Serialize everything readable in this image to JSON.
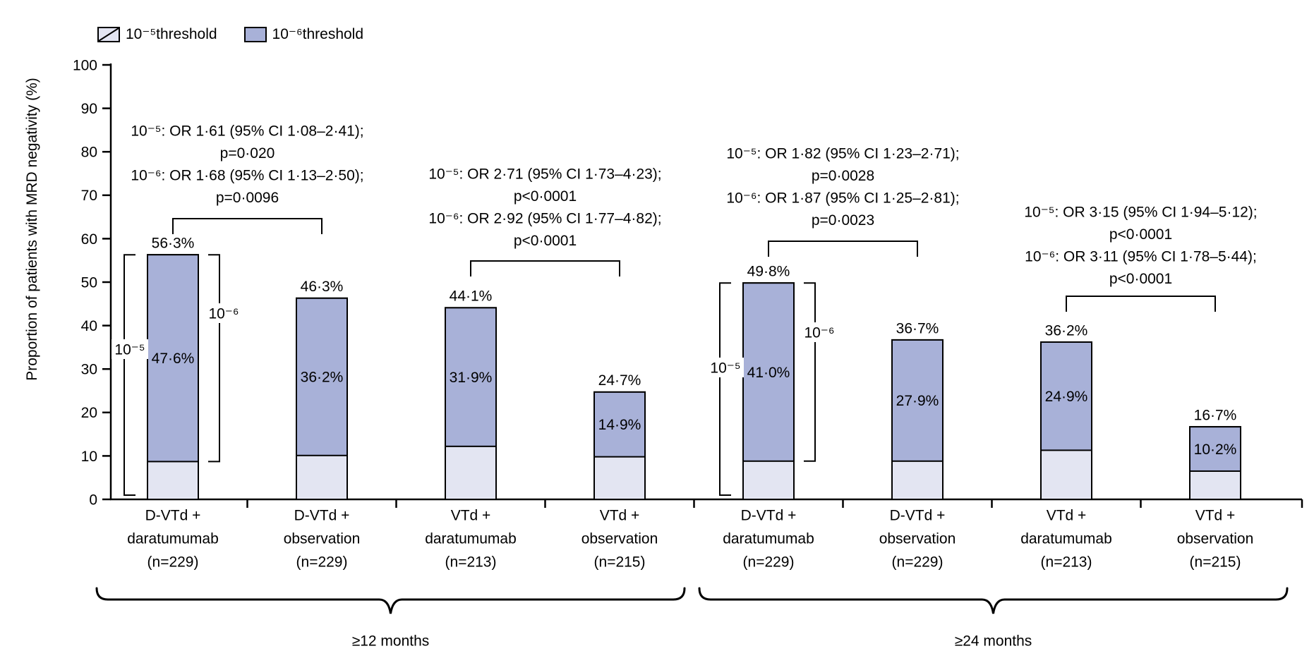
{
  "figure": {
    "background": "#ffffff",
    "y_axis": {
      "title": "Proportion of patients with MRD negativity (%)",
      "min": 0,
      "max": 100,
      "step": 10,
      "tick_labels": [
        "0",
        "10",
        "20",
        "30",
        "40",
        "50",
        "60",
        "70",
        "80",
        "90",
        "100"
      ]
    },
    "legend": {
      "items": [
        {
          "label": "10⁻⁵threshold",
          "swatch": "hatched-1e5"
        },
        {
          "label": "10⁻⁶threshold",
          "swatch": "solid-1e6"
        }
      ]
    },
    "colors": {
      "fill_1e6": "#a8b1d8",
      "fill_1e5": "#e3e5f2",
      "outline": "#000000",
      "text": "#000000"
    }
  },
  "chart_data": {
    "type": "bar",
    "stacked": true,
    "ylabel": "Proportion of patients with MRD negativity (%)",
    "ylim": [
      0,
      100
    ],
    "grid": false,
    "legend_position": "top-left",
    "groups": [
      {
        "label": "≥12 months",
        "bars": [
          {
            "category_lines": [
              "D-VTd +",
              "daratumumab",
              "(n=229)"
            ],
            "pct_1e5": 56.3,
            "pct_1e6": 47.6,
            "label_1e5": "56·3%",
            "label_1e6": "47·6%"
          },
          {
            "category_lines": [
              "D-VTd +",
              "observation",
              "(n=229)"
            ],
            "pct_1e5": 46.3,
            "pct_1e6": 36.2,
            "label_1e5": "46·3%",
            "label_1e6": "36·2%"
          },
          {
            "category_lines": [
              "VTd +",
              "daratumumab",
              "(n=213)"
            ],
            "pct_1e5": 44.1,
            "pct_1e6": 31.9,
            "label_1e5": "44·1%",
            "label_1e6": "31·9%"
          },
          {
            "category_lines": [
              "VTd +",
              "observation",
              "(n=215)"
            ],
            "pct_1e5": 24.7,
            "pct_1e6": 14.9,
            "label_1e5": "24·7%",
            "label_1e6": "14·9%"
          }
        ]
      },
      {
        "label": "≥24 months",
        "bars": [
          {
            "category_lines": [
              "D-VTd +",
              "daratumumab",
              "(n=229)"
            ],
            "pct_1e5": 49.8,
            "pct_1e6": 41.0,
            "label_1e5": "49·8%",
            "label_1e6": "41·0%"
          },
          {
            "category_lines": [
              "D-VTd +",
              "observation",
              "(n=229)"
            ],
            "pct_1e5": 36.7,
            "pct_1e6": 27.9,
            "label_1e5": "36·7%",
            "label_1e6": "27·9%"
          },
          {
            "category_lines": [
              "VTd +",
              "daratumumab",
              "(n=213)"
            ],
            "pct_1e5": 36.2,
            "pct_1e6": 24.9,
            "label_1e5": "36·2%",
            "label_1e6": "24·9%"
          },
          {
            "category_lines": [
              "VTd +",
              "observation",
              "(n=215)"
            ],
            "pct_1e5": 16.7,
            "pct_1e6": 10.2,
            "label_1e5": "16·7%",
            "label_1e6": "10·2%"
          }
        ]
      }
    ],
    "annotations": [
      {
        "bars": [
          0,
          1
        ],
        "lines": [
          "10⁻⁵: OR 1·61 (95% CI 1·08–2·41);",
          "p=0·020",
          "10⁻⁶: OR 1·68 (95% CI 1·13–2·50);",
          "p=0·0096"
        ]
      },
      {
        "bars": [
          2,
          3
        ],
        "lines": [
          "10⁻⁵: OR 2·71 (95% CI 1·73–4·23);",
          "p<0·0001",
          "10⁻⁶: OR 2·92 (95% CI 1·77–4·82);",
          "p<0·0001"
        ]
      },
      {
        "bars": [
          4,
          5
        ],
        "lines": [
          "10⁻⁵: OR 1·82 (95% CI 1·23–2·71);",
          "p=0·0028",
          "10⁻⁶: OR 1·87 (95% CI 1·25–2·81);",
          "p=0·0023"
        ]
      },
      {
        "bars": [
          6,
          7
        ],
        "lines": [
          "10⁻⁵: OR 3·15 (95% CI 1·94–5·12);",
          "p<0·0001",
          "10⁻⁶: OR 3·11 (95% CI 1·78–5·44);",
          "p<0·0001"
        ]
      }
    ],
    "range_brackets": [
      {
        "bar": 0,
        "side": "left",
        "span": "1e5-total",
        "label": "10⁻⁵"
      },
      {
        "bar": 0,
        "side": "right",
        "span": "1e6-upper",
        "label": "10⁻⁶"
      },
      {
        "bar": 4,
        "side": "left",
        "span": "1e5-total",
        "label": "10⁻⁵"
      },
      {
        "bar": 4,
        "side": "right",
        "span": "1e6-upper",
        "label": "10⁻⁶"
      }
    ]
  }
}
